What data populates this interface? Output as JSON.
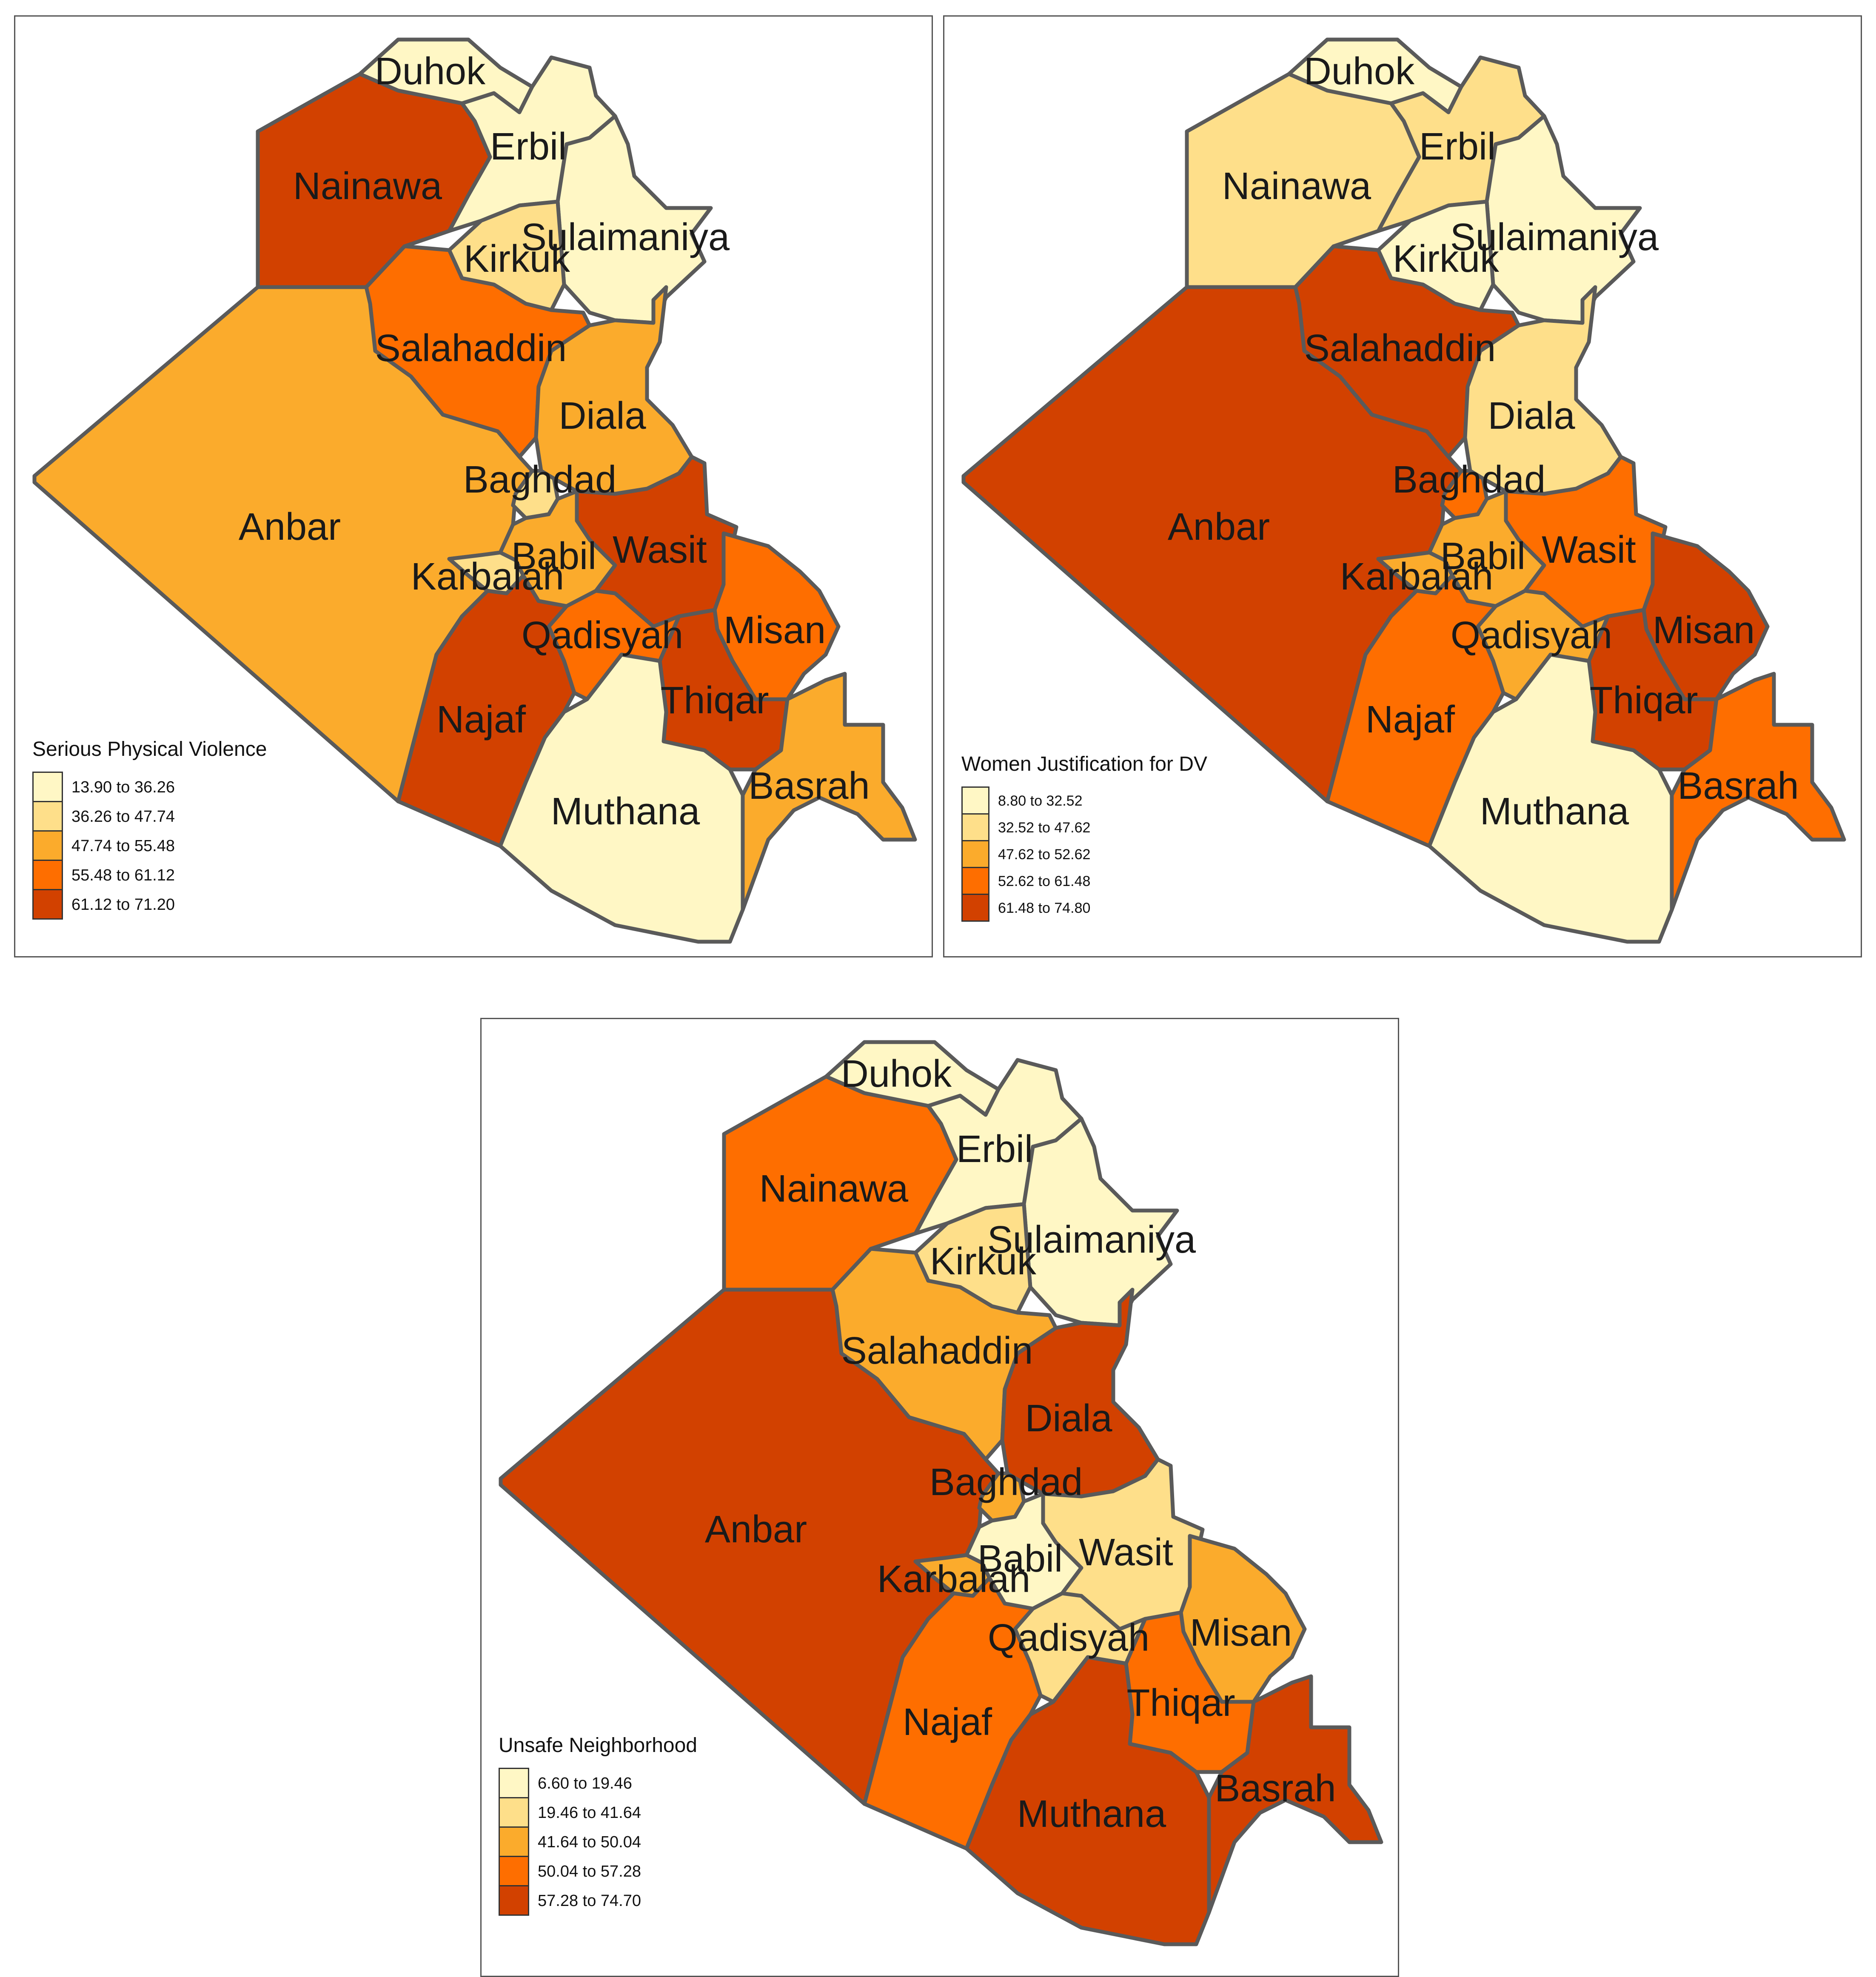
{
  "colors": [
    "#fff7c5",
    "#fedf8a",
    "#fbab2c",
    "#fe6e00",
    "#d24100"
  ],
  "maps": [
    {
      "legend_title": "Serious Physical Violence",
      "legend_classes": [
        "13.90 to 36.26",
        "36.26 to 47.74",
        "47.74 to 55.48",
        "55.48 to 61.12",
        "61.12 to 71.20"
      ],
      "regions": [
        {
          "name": "Duhok",
          "class": 0
        },
        {
          "name": "Erbil",
          "class": 0
        },
        {
          "name": "Nainawa",
          "class": 4
        },
        {
          "name": "Sulaimaniya",
          "class": 0
        },
        {
          "name": "Kirkuk",
          "class": 1
        },
        {
          "name": "Salahaddin",
          "class": 3
        },
        {
          "name": "Diala",
          "class": 2
        },
        {
          "name": "Anbar",
          "class": 2
        },
        {
          "name": "Baghdad",
          "class": 1
        },
        {
          "name": "Babil",
          "class": 2
        },
        {
          "name": "Karbalah",
          "class": 1
        },
        {
          "name": "Wasit",
          "class": 4
        },
        {
          "name": "Qadisyah",
          "class": 3
        },
        {
          "name": "Misan",
          "class": 3
        },
        {
          "name": "Thiqar",
          "class": 4
        },
        {
          "name": "Najaf",
          "class": 4
        },
        {
          "name": "Muthana",
          "class": 0
        },
        {
          "name": "Basrah",
          "class": 2
        }
      ]
    },
    {
      "legend_title": "Women Justification for DV",
      "legend_classes": [
        "8.80 to 32.52",
        "32.52 to 47.62",
        "47.62 to 52.62",
        "52.62 to 61.48",
        "61.48 to 74.80"
      ],
      "regions": [
        {
          "name": "Duhok",
          "class": 0
        },
        {
          "name": "Erbil",
          "class": 1
        },
        {
          "name": "Nainawa",
          "class": 1
        },
        {
          "name": "Sulaimaniya",
          "class": 0
        },
        {
          "name": "Kirkuk",
          "class": 0
        },
        {
          "name": "Salahaddin",
          "class": 4
        },
        {
          "name": "Diala",
          "class": 1
        },
        {
          "name": "Anbar",
          "class": 4
        },
        {
          "name": "Baghdad",
          "class": 3
        },
        {
          "name": "Babil",
          "class": 2
        },
        {
          "name": "Karbalah",
          "class": 2
        },
        {
          "name": "Wasit",
          "class": 3
        },
        {
          "name": "Qadisyah",
          "class": 2
        },
        {
          "name": "Misan",
          "class": 4
        },
        {
          "name": "Thiqar",
          "class": 4
        },
        {
          "name": "Najaf",
          "class": 3
        },
        {
          "name": "Muthana",
          "class": 0
        },
        {
          "name": "Basrah",
          "class": 3
        }
      ]
    },
    {
      "legend_title": "Unsafe Neighborhood",
      "legend_classes": [
        "6.60 to 19.46",
        "19.46 to 41.64",
        "41.64 to 50.04",
        "50.04 to 57.28",
        "57.28 to 74.70"
      ],
      "regions": [
        {
          "name": "Duhok",
          "class": 0
        },
        {
          "name": "Erbil",
          "class": 0
        },
        {
          "name": "Nainawa",
          "class": 3
        },
        {
          "name": "Sulaimaniya",
          "class": 0
        },
        {
          "name": "Kirkuk",
          "class": 1
        },
        {
          "name": "Salahaddin",
          "class": 2
        },
        {
          "name": "Diala",
          "class": 4
        },
        {
          "name": "Anbar",
          "class": 4
        },
        {
          "name": "Baghdad",
          "class": 2
        },
        {
          "name": "Babil",
          "class": 0
        },
        {
          "name": "Karbalah",
          "class": 2
        },
        {
          "name": "Wasit",
          "class": 1
        },
        {
          "name": "Qadisyah",
          "class": 1
        },
        {
          "name": "Misan",
          "class": 2
        },
        {
          "name": "Thiqar",
          "class": 3
        },
        {
          "name": "Najaf",
          "class": 3
        },
        {
          "name": "Muthana",
          "class": 4
        },
        {
          "name": "Basrah",
          "class": 4
        }
      ]
    }
  ]
}
